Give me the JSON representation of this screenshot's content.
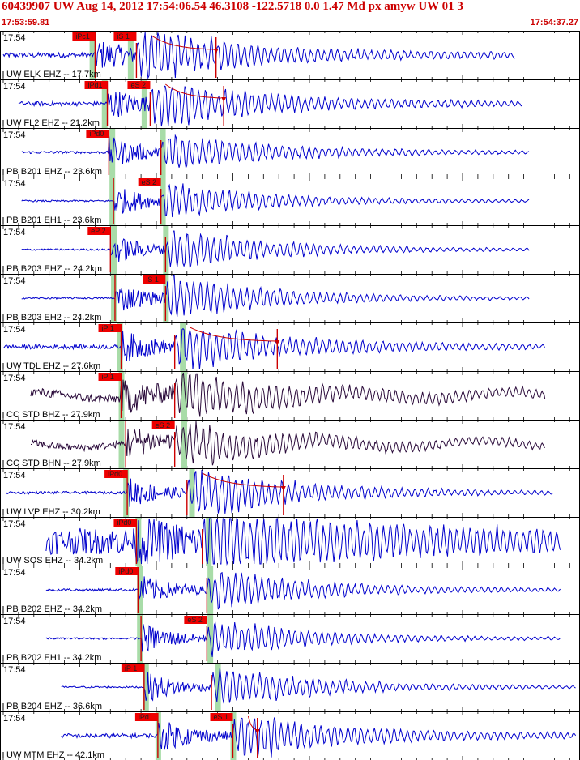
{
  "header": {
    "title": "60439907 UW Aug 14, 2012 17:54:06.54   46.3108 -122.5718  0.0 1.47 Md px amyw UW 01   3",
    "start_time": "17:53:59.81",
    "end_time": "17:54:37.27"
  },
  "colors": {
    "trace_blue": "#0000cc",
    "trace_dark": "#2a0a3a",
    "pick_box": "#ee0000",
    "pick_line": "#cc0000",
    "coda_line": "#cc0000",
    "window_green": "#a8dca8",
    "text_red": "#cc0000"
  },
  "chart_data": {
    "type": "line",
    "title": "60439907 UW Aug 14, 2012 17:54:06.54   46.3108 -122.5718  0.0 1.47 Md px amyw UW 01   3",
    "x_range_seconds": [
      0,
      37.46
    ],
    "x_start_label": "17:53:59.81",
    "x_end_label": "17:54:37.27",
    "panels": [
      {
        "time": "17:54",
        "station": "UW ELK EHZ -- 17.7km",
        "color": "blue",
        "p_label": "iPc1",
        "p_t": 6.0,
        "s_label": "iS 1",
        "s_t": 8.7,
        "coda_t": 13.9,
        "sig_start": 0.0,
        "sig_end": 33.4,
        "amp": 0.55,
        "noise": 0.06,
        "green": [
          5.8,
          8.3
        ]
      },
      {
        "time": "17:54",
        "station": "UW FL2 EHZ -- 21.2km",
        "color": "blue",
        "p_label": "iPd1",
        "p_t": 6.8,
        "s_label": "eS 2",
        "s_t": 9.6,
        "coda_t": 14.4,
        "sig_start": 1.0,
        "sig_end": 33.9,
        "amp": 0.55,
        "noise": 0.05,
        "green": [
          6.6,
          9.2
        ]
      },
      {
        "time": "17:54",
        "station": "PB B201 EHZ -- 23.6km",
        "color": "blue",
        "p_label": "iPd0",
        "p_t": 6.9,
        "s_label": "",
        "s_t": 10.3,
        "coda_t": null,
        "sig_start": 1.2,
        "sig_end": 34.4,
        "amp": 0.42,
        "noise": 0.03,
        "green": [
          7.1,
          10.4
        ]
      },
      {
        "time": "17:54",
        "station": "PB B201 EH1 -- 23.6km",
        "color": "blue",
        "p_label": "",
        "p_t": 7.2,
        "s_label": "eS 2",
        "s_t": 10.3,
        "coda_t": null,
        "sig_start": 1.2,
        "sig_end": 34.4,
        "amp": 0.38,
        "noise": 0.02,
        "green": [
          7.1,
          10.4
        ]
      },
      {
        "time": "17:54",
        "station": "PB B203 EHZ -- 24.2km",
        "color": "blue",
        "p_label": "eP 2",
        "p_t": 7.0,
        "s_label": "",
        "s_t": 10.6,
        "coda_t": null,
        "sig_start": 1.2,
        "sig_end": 34.4,
        "amp": 0.45,
        "noise": 0.02,
        "green": [
          7.2,
          10.6
        ]
      },
      {
        "time": "17:54",
        "station": "PB B203 EH2 -- 24.2km",
        "color": "blue",
        "p_label": "",
        "p_t": 7.3,
        "s_label": "iS 1",
        "s_t": 10.6,
        "coda_t": null,
        "sig_start": 1.2,
        "sig_end": 34.4,
        "amp": 0.5,
        "noise": 0.02,
        "green": [
          7.2,
          10.6
        ]
      },
      {
        "time": "17:54",
        "station": "UW TDL EHZ -- 27.6km",
        "color": "blue",
        "p_label": "iP 1",
        "p_t": 7.7,
        "s_label": "",
        "s_t": 11.2,
        "coda_t": 17.9,
        "sig_start": 0.0,
        "sig_end": 35.4,
        "amp": 0.5,
        "noise": 0.05,
        "green": [
          7.6,
          11.7
        ]
      },
      {
        "time": "17:54",
        "station": "CC STD BHZ -- 27.9km",
        "color": "dark",
        "p_label": "iP 1",
        "p_t": 7.7,
        "s_label": "",
        "s_t": 11.2,
        "coda_t": null,
        "sig_start": 1.8,
        "sig_end": 35.4,
        "amp": 0.45,
        "noise": 0.1,
        "green": [
          7.7,
          11.8
        ]
      },
      {
        "time": "17:54",
        "station": "CC STD BHN -- 27.9km",
        "color": "dark",
        "p_label": "",
        "p_t": 8.0,
        "s_label": "eS 2",
        "s_t": 11.2,
        "coda_t": null,
        "sig_start": 1.8,
        "sig_end": 35.4,
        "amp": 0.4,
        "noise": 0.08,
        "green": [
          7.7,
          11.8
        ]
      },
      {
        "time": "17:54",
        "station": "UW LVP EHZ -- 30.2km",
        "color": "blue",
        "p_label": "iPd0",
        "p_t": 8.1,
        "s_label": "",
        "s_t": 12.0,
        "coda_t": 18.3,
        "sig_start": 0.2,
        "sig_end": 35.9,
        "amp": 0.55,
        "noise": 0.03,
        "green": [
          8.0,
          12.3
        ]
      },
      {
        "time": "17:54",
        "station": "UW SOS EHZ -- 34.2km",
        "color": "blue",
        "p_label": "iPd0",
        "p_t": 8.7,
        "s_label": "",
        "s_t": 13.0,
        "coda_t": null,
        "sig_start": 2.8,
        "sig_end": 36.4,
        "amp": 0.55,
        "noise": 0.3,
        "green": [
          8.8,
          13.4
        ]
      },
      {
        "time": "17:54",
        "station": "PB B202 EHZ -- 34.2km",
        "color": "blue",
        "p_label": "iPd0",
        "p_t": 8.8,
        "s_label": "",
        "s_t": 13.3,
        "coda_t": null,
        "sig_start": 2.8,
        "sig_end": 36.4,
        "amp": 0.45,
        "noise": 0.03,
        "green": [
          8.9,
          13.5
        ]
      },
      {
        "time": "17:54",
        "station": "PB B202 EH1 -- 34.2km",
        "color": "blue",
        "p_label": "",
        "p_t": 9.0,
        "s_label": "eS 2",
        "s_t": 13.3,
        "coda_t": null,
        "sig_start": 2.8,
        "sig_end": 36.4,
        "amp": 0.42,
        "noise": 0.02,
        "green": [
          8.9,
          13.5
        ]
      },
      {
        "time": "17:54",
        "station": "PB B204 EHZ -- 36.6km",
        "color": "blue",
        "p_label": "iP 1",
        "p_t": 9.2,
        "s_label": "",
        "s_t": 13.6,
        "coda_t": null,
        "sig_start": 3.8,
        "sig_end": 37.4,
        "amp": 0.45,
        "noise": 0.02,
        "green": [
          9.3,
          14.0
        ]
      },
      {
        "time": "17:54",
        "station": "UW MTM EHZ -- 42.1km",
        "color": "blue",
        "p_label": "iPd1",
        "p_t": 10.1,
        "s_label": "eS 1",
        "s_t": 15.0,
        "coda_t": 16.6,
        "sig_start": 3.8,
        "sig_end": 37.4,
        "amp": 0.5,
        "noise": 0.05,
        "green": [
          10.1,
          15.0
        ]
      }
    ]
  }
}
